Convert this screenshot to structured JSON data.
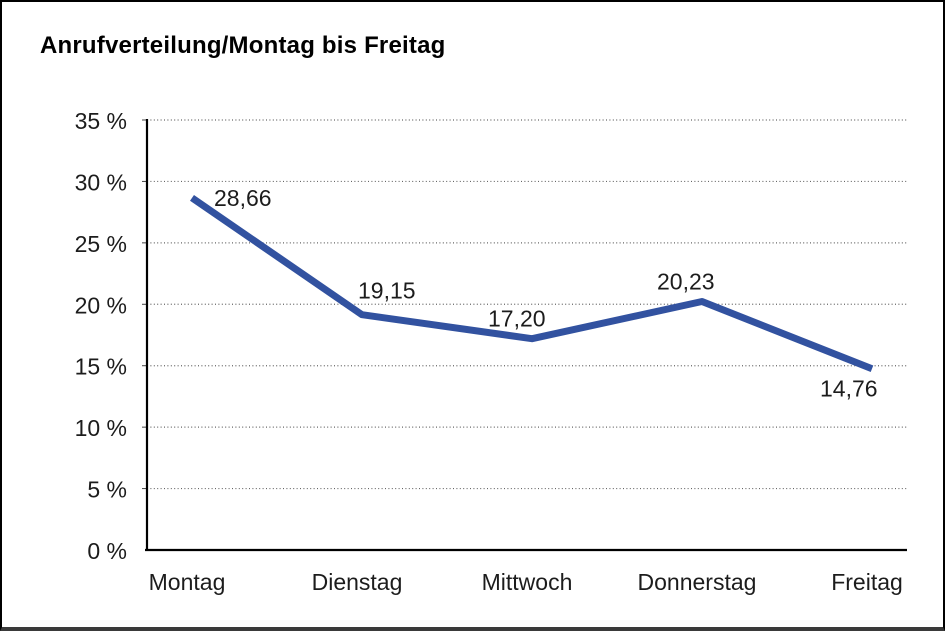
{
  "chart_data": {
    "type": "line",
    "title": "Anrufverteilung/Montag bis Freitag",
    "categories": [
      "Montag",
      "Dienstag",
      "Mittwoch",
      "Donnerstag",
      "Freitag"
    ],
    "values": [
      28.66,
      19.15,
      17.2,
      20.23,
      14.76
    ],
    "value_labels": [
      "28,66",
      "19,15",
      "17,20",
      "20,23",
      "14,76"
    ],
    "yticks": [
      "0 %",
      "5 %",
      "10 %",
      "15 %",
      "20 %",
      "25 %",
      "30 %",
      "35 %"
    ],
    "ytick_values": [
      0,
      5,
      10,
      15,
      20,
      25,
      30,
      35
    ],
    "ylim": [
      0,
      35
    ],
    "xlabel": "",
    "ylabel": "",
    "grid": "horizontal-dotted",
    "legend": "none",
    "colors": {
      "line": "#3252a0",
      "axis": "#000000",
      "grid": "#666666",
      "text": "#1c1c1c"
    }
  }
}
